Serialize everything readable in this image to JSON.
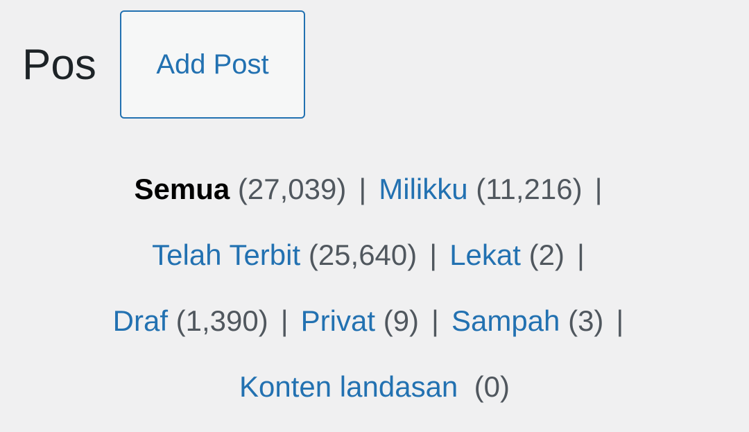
{
  "header": {
    "title": "Pos",
    "add_label": "Add Post"
  },
  "filters": [
    {
      "label": "Semua",
      "count": "(27,039)",
      "current": true
    },
    {
      "label": "Milikku",
      "count": "(11,216)"
    },
    {
      "label": "Telah Terbit",
      "count": "(25,640)"
    },
    {
      "label": "Lekat",
      "count": "(2)"
    },
    {
      "label": "Draf",
      "count": "(1,390)"
    },
    {
      "label": "Privat",
      "count": "(9)"
    },
    {
      "label": "Sampah",
      "count": "(3)"
    },
    {
      "label": "Konten landasan",
      "count": "(0)"
    }
  ],
  "separator": "|",
  "colors": {
    "link": "#2271b1",
    "text": "#50575e",
    "background": "#f0f0f1"
  }
}
